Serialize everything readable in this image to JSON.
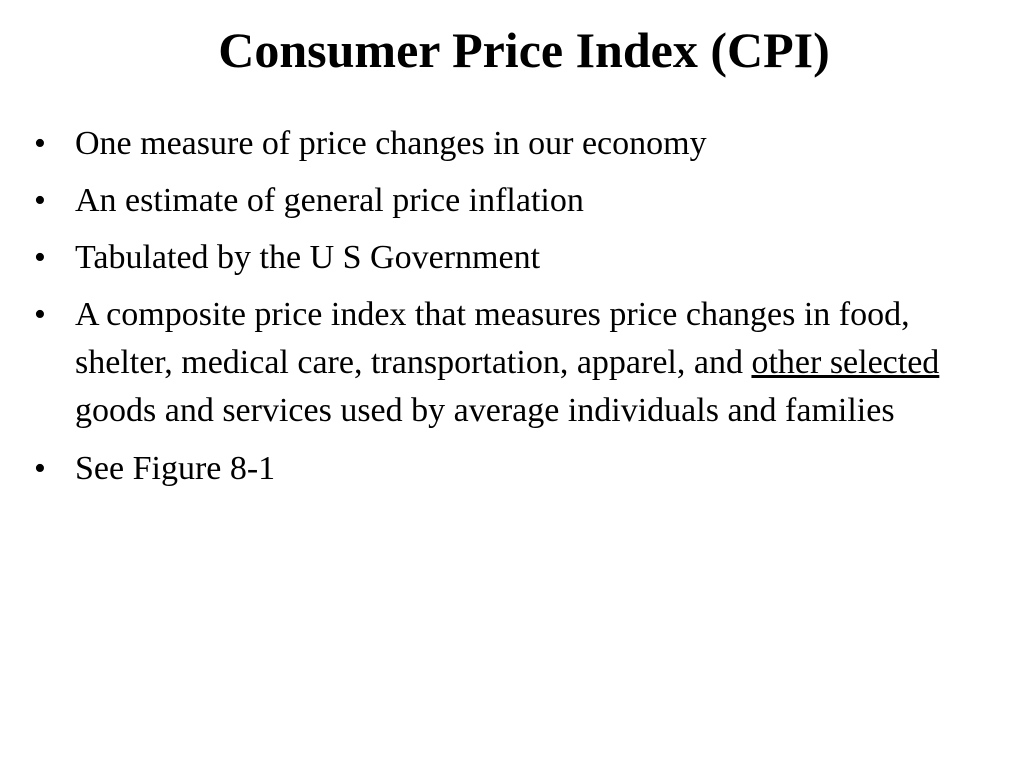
{
  "slide": {
    "title": "Consumer Price Index (CPI)",
    "bullet_glyph": "•",
    "bullets": [
      {
        "text": "One measure of price changes in our economy"
      },
      {
        "text": "An estimate of general price inflation"
      },
      {
        "text": "Tabulated by the U S Government"
      },
      {
        "text_before": "A composite price index that measures price changes in food, shelter, medical care, transportation, apparel, and",
        "underlined": "other selected",
        "text_after": "goods and services used by average individuals and families"
      },
      {
        "text": "See Figure 8-1"
      }
    ]
  }
}
